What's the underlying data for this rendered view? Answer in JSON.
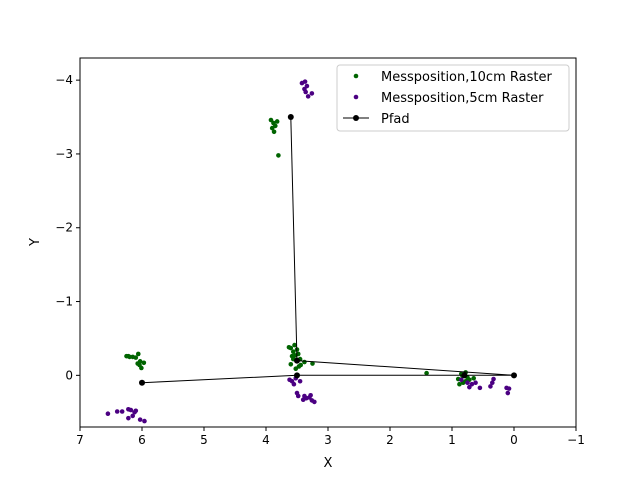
{
  "chart_data": {
    "type": "scatter",
    "title": "",
    "xlabel": "X",
    "ylabel": "Y",
    "xlim": [
      7,
      -1
    ],
    "ylim": [
      0.7,
      -4.3
    ],
    "x_inverted": true,
    "y_inverted": true,
    "grid": false,
    "legend_position": "top-right",
    "xticks": [
      {
        "value": 7,
        "label": "7"
      },
      {
        "value": 6,
        "label": "6"
      },
      {
        "value": 5,
        "label": "5"
      },
      {
        "value": 4,
        "label": "4"
      },
      {
        "value": 3,
        "label": "3"
      },
      {
        "value": 2,
        "label": "2"
      },
      {
        "value": 1,
        "label": "1"
      },
      {
        "value": 0,
        "label": "0"
      },
      {
        "value": -1,
        "label": "−1"
      }
    ],
    "yticks": [
      {
        "value": -4,
        "label": "−4"
      },
      {
        "value": -3,
        "label": "−3"
      },
      {
        "value": -2,
        "label": "−2"
      },
      {
        "value": -1,
        "label": "−1"
      },
      {
        "value": 0,
        "label": "0"
      }
    ],
    "series": [
      {
        "name": "Messposition,10cm Raster",
        "kind": "scatter",
        "color": "#006400",
        "points": [
          [
            3.92,
            -3.46
          ],
          [
            3.88,
            -3.42
          ],
          [
            3.85,
            -3.38
          ],
          [
            3.9,
            -3.35
          ],
          [
            3.87,
            -3.3
          ],
          [
            3.82,
            -3.44
          ],
          [
            3.8,
            -2.98
          ],
          [
            6.01,
            -0.1
          ],
          [
            6.04,
            -0.14
          ],
          [
            6.07,
            -0.16
          ],
          [
            5.97,
            -0.17
          ],
          [
            6.03,
            -0.19
          ],
          [
            6.2,
            -0.25
          ],
          [
            6.22,
            -0.26
          ],
          [
            6.15,
            -0.25
          ],
          [
            6.25,
            -0.26
          ],
          [
            6.1,
            -0.24
          ],
          [
            6.06,
            -0.29
          ],
          [
            3.58,
            -0.26
          ],
          [
            3.5,
            -0.19
          ],
          [
            3.47,
            -0.12
          ],
          [
            3.44,
            -0.14
          ],
          [
            3.52,
            -0.09
          ],
          [
            3.6,
            -0.15
          ],
          [
            3.38,
            -0.18
          ],
          [
            3.53,
            -0.27
          ],
          [
            3.56,
            -0.32
          ],
          [
            3.5,
            -0.35
          ],
          [
            3.6,
            -0.37
          ],
          [
            3.63,
            -0.38
          ],
          [
            3.54,
            -0.41
          ],
          [
            3.48,
            -0.29
          ],
          [
            3.25,
            -0.16
          ],
          [
            3.45,
            -0.22
          ],
          [
            3.56,
            -0.22
          ],
          [
            1.41,
            -0.03
          ],
          [
            0.88,
            0.12
          ],
          [
            0.82,
            0.1
          ],
          [
            0.78,
            0.08
          ],
          [
            0.72,
            0.06
          ],
          [
            0.75,
            0.03
          ],
          [
            0.83,
            0.01
          ],
          [
            0.65,
            0.04
          ],
          [
            0.85,
            -0.02
          ],
          [
            0.78,
            -0.04
          ],
          [
            0.9,
            0.05
          ],
          [
            0.8,
            -0.01
          ]
        ]
      },
      {
        "name": "Messposition,5cm Raster",
        "kind": "scatter",
        "color": "#4b0082",
        "points": [
          [
            3.42,
            -3.96
          ],
          [
            3.37,
            -3.98
          ],
          [
            3.34,
            -3.92
          ],
          [
            3.38,
            -3.88
          ],
          [
            3.36,
            -3.84
          ],
          [
            3.32,
            -3.78
          ],
          [
            3.26,
            -3.82
          ],
          [
            6.55,
            0.52
          ],
          [
            6.4,
            0.49
          ],
          [
            6.32,
            0.49
          ],
          [
            6.22,
            0.46
          ],
          [
            6.18,
            0.47
          ],
          [
            6.1,
            0.48
          ],
          [
            6.15,
            0.55
          ],
          [
            6.22,
            0.58
          ],
          [
            6.03,
            0.6
          ],
          [
            5.96,
            0.62
          ],
          [
            6.12,
            0.5
          ],
          [
            3.4,
            0.33
          ],
          [
            3.35,
            0.31
          ],
          [
            3.3,
            0.3
          ],
          [
            3.26,
            0.34
          ],
          [
            3.22,
            0.36
          ],
          [
            3.38,
            0.28
          ],
          [
            3.28,
            0.27
          ],
          [
            3.48,
            0.28
          ],
          [
            3.5,
            0.24
          ],
          [
            3.55,
            0.12
          ],
          [
            3.58,
            0.08
          ],
          [
            3.62,
            0.06
          ],
          [
            3.45,
            0.08
          ],
          [
            3.52,
            0.04
          ],
          [
            0.72,
            0.16
          ],
          [
            0.68,
            0.12
          ],
          [
            0.62,
            0.1
          ],
          [
            0.55,
            0.17
          ],
          [
            0.38,
            0.15
          ],
          [
            0.35,
            0.1
          ],
          [
            0.33,
            0.05
          ],
          [
            0.1,
            0.24
          ],
          [
            0.08,
            0.18
          ],
          [
            0.12,
            0.17
          ],
          [
            0.85,
            0.06
          ],
          [
            0.8,
            0.0
          ],
          [
            0.75,
            0.1
          ]
        ]
      },
      {
        "name": "Pfad",
        "kind": "line",
        "color": "#000000",
        "points": [
          [
            6.0,
            0.1
          ],
          [
            3.5,
            0.0
          ],
          [
            0.8,
            0.0
          ],
          [
            0.0,
            0.0
          ],
          [
            3.5,
            -0.2
          ],
          [
            3.6,
            -3.5
          ]
        ]
      }
    ]
  }
}
